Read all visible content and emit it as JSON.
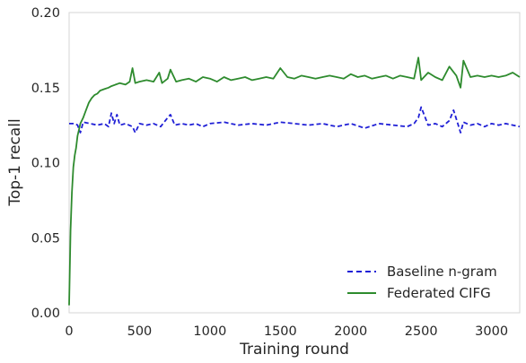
{
  "chart_data": {
    "type": "line",
    "xlabel": "Training round",
    "ylabel": "Top-1 recall",
    "xlim": [
      0,
      3200
    ],
    "ylim": [
      0.0,
      0.2
    ],
    "xticks": [
      0,
      500,
      1000,
      1500,
      2000,
      2500,
      3000
    ],
    "xtick_labels": [
      "0",
      "500",
      "1000",
      "1500",
      "2000",
      "2500",
      "3000"
    ],
    "yticks": [
      0.0,
      0.05,
      0.1,
      0.15,
      0.2
    ],
    "ytick_labels": [
      "0.00",
      "0.05",
      "0.10",
      "0.15",
      "0.20"
    ],
    "grid": false,
    "legend_position": "lower right",
    "series": [
      {
        "name": "Baseline n-gram",
        "color": "#1f1fd6",
        "dash": "dashed",
        "x": [
          0,
          40,
          60,
          80,
          100,
          150,
          200,
          250,
          280,
          300,
          320,
          340,
          360,
          400,
          450,
          470,
          500,
          550,
          600,
          650,
          700,
          720,
          750,
          800,
          850,
          900,
          950,
          1000,
          1100,
          1200,
          1300,
          1400,
          1500,
          1600,
          1700,
          1800,
          1900,
          2000,
          2100,
          2200,
          2300,
          2400,
          2450,
          2480,
          2500,
          2550,
          2600,
          2650,
          2700,
          2730,
          2760,
          2780,
          2800,
          2850,
          2900,
          2950,
          3000,
          3050,
          3100,
          3150,
          3200
        ],
        "y": [
          0.126,
          0.126,
          0.125,
          0.12,
          0.127,
          0.126,
          0.125,
          0.126,
          0.124,
          0.133,
          0.126,
          0.132,
          0.125,
          0.126,
          0.124,
          0.12,
          0.126,
          0.125,
          0.126,
          0.124,
          0.13,
          0.132,
          0.125,
          0.126,
          0.125,
          0.126,
          0.124,
          0.126,
          0.127,
          0.125,
          0.126,
          0.125,
          0.127,
          0.126,
          0.125,
          0.126,
          0.124,
          0.126,
          0.123,
          0.126,
          0.125,
          0.124,
          0.126,
          0.13,
          0.137,
          0.125,
          0.126,
          0.124,
          0.128,
          0.135,
          0.126,
          0.12,
          0.127,
          0.125,
          0.126,
          0.124,
          0.126,
          0.125,
          0.126,
          0.125,
          0.124
        ]
      },
      {
        "name": "Federated CIFG",
        "color": "#2e8b2e",
        "dash": "solid",
        "x": [
          0,
          10,
          20,
          30,
          40,
          50,
          60,
          70,
          80,
          100,
          120,
          140,
          160,
          180,
          200,
          220,
          250,
          280,
          300,
          330,
          360,
          400,
          430,
          450,
          470,
          500,
          550,
          600,
          640,
          660,
          700,
          720,
          760,
          800,
          850,
          900,
          950,
          1000,
          1050,
          1100,
          1150,
          1200,
          1250,
          1300,
          1350,
          1400,
          1450,
          1500,
          1550,
          1600,
          1650,
          1700,
          1750,
          1800,
          1850,
          1900,
          1950,
          2000,
          2050,
          2100,
          2150,
          2200,
          2250,
          2300,
          2350,
          2400,
          2450,
          2480,
          2500,
          2550,
          2600,
          2650,
          2700,
          2750,
          2780,
          2800,
          2850,
          2900,
          2950,
          3000,
          3050,
          3100,
          3150,
          3200
        ],
        "y": [
          0.005,
          0.055,
          0.08,
          0.097,
          0.105,
          0.11,
          0.118,
          0.122,
          0.126,
          0.13,
          0.135,
          0.14,
          0.143,
          0.145,
          0.146,
          0.148,
          0.149,
          0.15,
          0.151,
          0.152,
          0.153,
          0.152,
          0.154,
          0.163,
          0.153,
          0.154,
          0.155,
          0.154,
          0.16,
          0.153,
          0.156,
          0.162,
          0.154,
          0.155,
          0.156,
          0.154,
          0.157,
          0.156,
          0.154,
          0.157,
          0.155,
          0.156,
          0.157,
          0.155,
          0.156,
          0.157,
          0.156,
          0.163,
          0.157,
          0.156,
          0.158,
          0.157,
          0.156,
          0.157,
          0.158,
          0.157,
          0.156,
          0.159,
          0.157,
          0.158,
          0.156,
          0.157,
          0.158,
          0.156,
          0.158,
          0.157,
          0.156,
          0.17,
          0.155,
          0.16,
          0.157,
          0.155,
          0.164,
          0.158,
          0.15,
          0.168,
          0.157,
          0.158,
          0.157,
          0.158,
          0.157,
          0.158,
          0.16,
          0.157
        ]
      }
    ]
  }
}
